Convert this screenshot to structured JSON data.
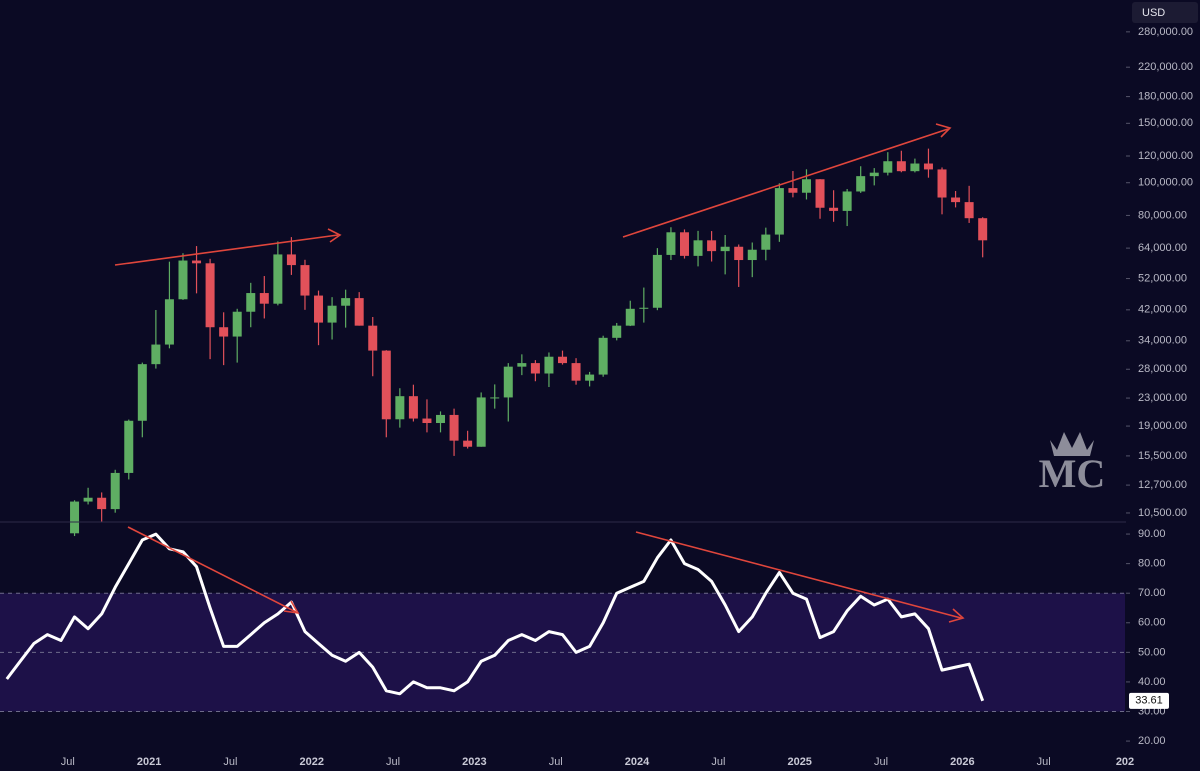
{
  "chart_data": [
    {
      "type": "candlestick",
      "currency": "USD",
      "watermark": "MC",
      "log_scale": true,
      "up_color": "#5fae63",
      "down_color": "#e2515a",
      "x": [
        "2020-07",
        "2020-08",
        "2020-09",
        "2020-10",
        "2020-11",
        "2020-12",
        "2021-01",
        "2021-02",
        "2021-03",
        "2021-04",
        "2021-05",
        "2021-06",
        "2021-07",
        "2021-08",
        "2021-09",
        "2021-10",
        "2021-11",
        "2021-12",
        "2022-01",
        "2022-02",
        "2022-03",
        "2022-04",
        "2022-05",
        "2022-06",
        "2022-07",
        "2022-08",
        "2022-09",
        "2022-10",
        "2022-11",
        "2022-12",
        "2023-01",
        "2023-02",
        "2023-03",
        "2023-04",
        "2023-05",
        "2023-06",
        "2023-07",
        "2023-08",
        "2023-09",
        "2023-10",
        "2023-11",
        "2023-12",
        "2024-01",
        "2024-02",
        "2024-03",
        "2024-04",
        "2024-05",
        "2024-06",
        "2024-07",
        "2024-08",
        "2024-09",
        "2024-10",
        "2024-11",
        "2024-12",
        "2025-01",
        "2025-02",
        "2025-03",
        "2025-04",
        "2025-05",
        "2025-06",
        "2025-07",
        "2025-08",
        "2025-09",
        "2025-10",
        "2025-11",
        "2025-12",
        "2026-01",
        "2026-02"
      ],
      "open": [
        9140,
        11350,
        11650,
        10780,
        13800,
        19700,
        28990,
        33140,
        45140,
        58800,
        57700,
        37300,
        35000,
        41460,
        47100,
        43800,
        61300,
        57000,
        46300,
        38500,
        43200,
        45500,
        37700,
        31800,
        19900,
        23300,
        20000,
        19400,
        20500,
        17200,
        16500,
        23100,
        23100,
        28500,
        29200,
        27200,
        30500,
        29200,
        25900,
        27000,
        34700,
        37700,
        42300,
        42600,
        61100,
        71300,
        60700,
        67500,
        62700,
        64600,
        59000,
        63300,
        70200,
        96400,
        93400,
        102400,
        84300,
        82500,
        94200,
        104600,
        107100,
        115800,
        108200,
        114000,
        109500,
        90400,
        87600,
        78500
      ],
      "high": [
        11450,
        12470,
        12080,
        14100,
        19860,
        29300,
        41950,
        58350,
        61800,
        64900,
        59500,
        41300,
        42300,
        50500,
        52900,
        67000,
        69000,
        59100,
        47900,
        45800,
        48200,
        47400,
        40000,
        31900,
        24600,
        25200,
        22800,
        21000,
        21400,
        18400,
        23900,
        25250,
        29200,
        31000,
        29800,
        31400,
        31800,
        30200,
        27500,
        35200,
        38400,
        44700,
        48900,
        64000,
        73800,
        72700,
        72000,
        71900,
        70000,
        65600,
        66500,
        73600,
        99600,
        108300,
        109600,
        102500,
        95000,
        95800,
        111900,
        110500,
        123200,
        124400,
        117900,
        126200,
        111000,
        94500,
        97900,
        79000
      ],
      "low": [
        8970,
        11130,
        9880,
        10520,
        13200,
        17600,
        28130,
        32300,
        44950,
        47000,
        30000,
        28800,
        29300,
        37300,
        39600,
        43300,
        53300,
        42000,
        33000,
        34300,
        37200,
        37700,
        26700,
        17600,
        18800,
        19600,
        18200,
        18200,
        15500,
        16300,
        16500,
        21400,
        19600,
        26900,
        25800,
        24800,
        28900,
        25200,
        24900,
        26600,
        34100,
        37600,
        38500,
        41900,
        59000,
        59600,
        56500,
        58400,
        53500,
        49100,
        52500,
        58900,
        66800,
        90500,
        89200,
        78200,
        76600,
        74400,
        93300,
        98200,
        105100,
        107400,
        107300,
        103500,
        80600,
        84500,
        76000,
        60100
      ],
      "close": [
        11350,
        11650,
        10780,
        13800,
        19700,
        28990,
        33140,
        45140,
        58800,
        57700,
        37300,
        35000,
        41460,
        47100,
        43800,
        61300,
        57000,
        46300,
        38500,
        43200,
        45500,
        37700,
        31800,
        19900,
        23300,
        20000,
        19400,
        20500,
        17200,
        16500,
        23100,
        23100,
        28500,
        29200,
        27200,
        30500,
        29200,
        25900,
        27000,
        34700,
        37700,
        42300,
        42600,
        61100,
        71300,
        60700,
        67500,
        62700,
        64600,
        59000,
        63300,
        70200,
        96400,
        93400,
        102400,
        84300,
        82500,
        94200,
        104600,
        107100,
        115800,
        108200,
        114000,
        109500,
        90400,
        87600,
        78500,
        67500
      ],
      "xlim": [
        "2020-02",
        "2027-01"
      ],
      "ylim": [
        9940,
        348000
      ],
      "yticks": [
        {
          "value": 280000,
          "label": "280,000.00"
        },
        {
          "value": 220000,
          "label": "220,000.00"
        },
        {
          "value": 180000,
          "label": "180,000.00"
        },
        {
          "value": 150000,
          "label": "150,000.00"
        },
        {
          "value": 120000,
          "label": "120,000.00"
        },
        {
          "value": 100000,
          "label": "100,000.00"
        },
        {
          "value": 80000,
          "label": "80,000.00"
        },
        {
          "value": 64000,
          "label": "64,000.00"
        },
        {
          "value": 52000,
          "label": "52,000.00"
        },
        {
          "value": 42000,
          "label": "42,000.00"
        },
        {
          "value": 34000,
          "label": "34,000.00"
        },
        {
          "value": 28000,
          "label": "28,000.00"
        },
        {
          "value": 23000,
          "label": "23,000.00"
        },
        {
          "value": 19000,
          "label": "19,000.00"
        },
        {
          "value": 15500,
          "label": "15,500.00"
        },
        {
          "value": 12700,
          "label": "12,700.00"
        },
        {
          "value": 10500,
          "label": "10,500.00"
        }
      ]
    },
    {
      "type": "line",
      "color": "#ffffff",
      "band": [
        30,
        70
      ],
      "levels": [
        70,
        50,
        30
      ],
      "band_color": "#1d1148",
      "x": [
        "2020-02",
        "2020-03",
        "2020-04",
        "2020-05",
        "2020-06",
        "2020-07",
        "2020-08",
        "2020-09",
        "2020-10",
        "2020-11",
        "2020-12",
        "2021-01",
        "2021-02",
        "2021-03",
        "2021-04",
        "2021-05",
        "2021-06",
        "2021-07",
        "2021-08",
        "2021-09",
        "2021-10",
        "2021-11",
        "2021-12",
        "2022-01",
        "2022-02",
        "2022-03",
        "2022-04",
        "2022-05",
        "2022-06",
        "2022-07",
        "2022-08",
        "2022-09",
        "2022-10",
        "2022-11",
        "2022-12",
        "2023-01",
        "2023-02",
        "2023-03",
        "2023-04",
        "2023-05",
        "2023-06",
        "2023-07",
        "2023-08",
        "2023-09",
        "2023-10",
        "2023-11",
        "2023-12",
        "2024-01",
        "2024-02",
        "2024-03",
        "2024-04",
        "2024-05",
        "2024-06",
        "2024-07",
        "2024-08",
        "2024-09",
        "2024-10",
        "2024-11",
        "2024-12",
        "2025-01",
        "2025-02",
        "2025-03",
        "2025-04",
        "2025-05",
        "2025-06",
        "2025-07",
        "2025-08",
        "2025-09",
        "2025-10",
        "2025-11",
        "2025-12",
        "2026-01",
        "2026-02"
      ],
      "values": [
        41,
        47,
        53,
        56,
        54,
        62,
        58,
        63,
        72,
        80,
        88,
        90,
        85,
        84,
        79,
        65,
        52,
        52,
        56,
        60,
        63,
        67,
        57,
        53,
        49,
        47,
        50,
        45,
        37,
        36,
        40,
        38,
        38,
        37,
        40,
        47,
        49,
        54,
        56,
        54,
        57,
        56,
        50,
        52,
        60,
        70,
        72,
        74,
        82,
        88,
        80,
        78,
        74,
        66,
        57,
        62,
        70,
        77,
        70,
        68,
        55,
        57,
        64,
        69,
        66,
        68,
        62,
        63,
        58,
        44,
        45,
        46,
        33.61
      ],
      "xlim": [
        "2020-02",
        "2027-01"
      ],
      "ylim": [
        13.6,
        93.4
      ],
      "yticks": [
        {
          "value": 90,
          "label": "90.00"
        },
        {
          "value": 80,
          "label": "80.00"
        },
        {
          "value": 70,
          "label": "70.00"
        },
        {
          "value": 60,
          "label": "60.00"
        },
        {
          "value": 50,
          "label": "50.00"
        },
        {
          "value": 40,
          "label": "40.00"
        },
        {
          "value": 30,
          "label": "30.00"
        },
        {
          "value": 20,
          "label": "20.00"
        }
      ],
      "xticks": [
        {
          "value": "2020-07",
          "label": "Jul"
        },
        {
          "value": "2021-01",
          "label": "2021"
        },
        {
          "value": "2021-07",
          "label": "Jul"
        },
        {
          "value": "2022-01",
          "label": "2022"
        },
        {
          "value": "2022-07",
          "label": "Jul"
        },
        {
          "value": "2023-01",
          "label": "2023"
        },
        {
          "value": "2023-07",
          "label": "Jul"
        },
        {
          "value": "2024-01",
          "label": "2024"
        },
        {
          "value": "2024-07",
          "label": "Jul"
        },
        {
          "value": "2025-01",
          "label": "2025"
        },
        {
          "value": "2025-07",
          "label": "Jul"
        },
        {
          "value": "2026-01",
          "label": "2026"
        },
        {
          "value": "2026-07",
          "label": "Jul"
        },
        {
          "value": "2027-01",
          "label": "202"
        }
      ]
    }
  ]
}
